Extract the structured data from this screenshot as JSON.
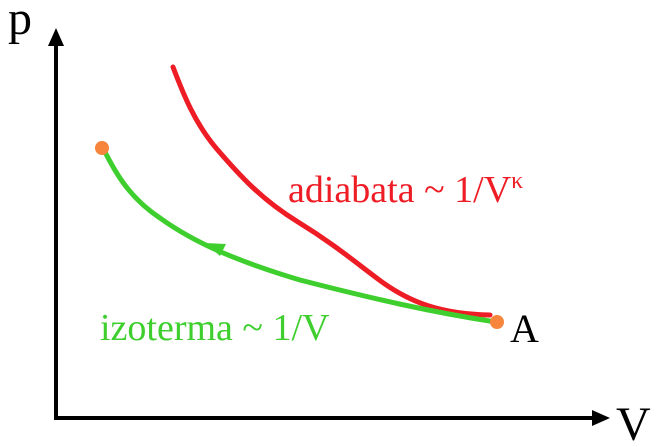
{
  "axes": {
    "y_label": "p",
    "x_label": "V"
  },
  "point_a_label": "A",
  "curves": {
    "adiabatic": {
      "label_main": "adiabata ~ 1/V",
      "label_exponent": "κ",
      "color": "#ee1c24"
    },
    "isothermal": {
      "label": "izoterma ~ 1/V",
      "color": "#3ecf2e",
      "direction": "toward smaller V (arrow pointing up-left)"
    }
  },
  "colors": {
    "axis": "#000000",
    "endpoint_marker": "#f7853b"
  }
}
